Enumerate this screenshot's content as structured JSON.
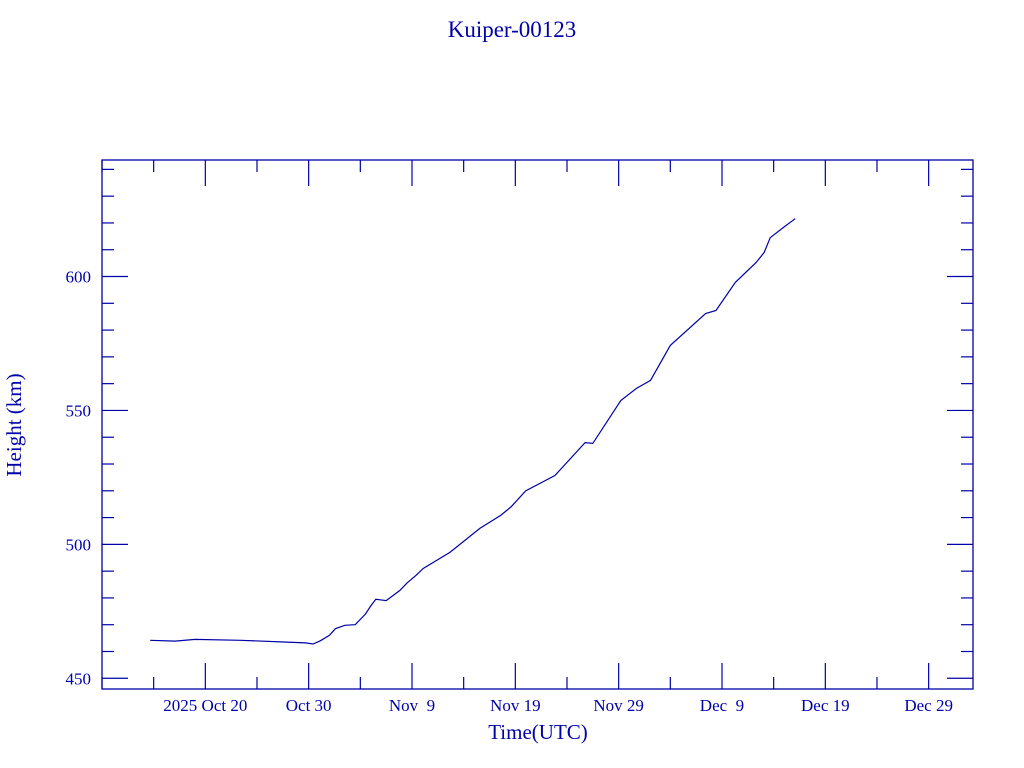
{
  "chart_data": {
    "type": "line",
    "title": "Kuiper-00123",
    "xlabel": "Time(UTC)",
    "ylabel": "Height (km)",
    "color": "#0000a8",
    "grid": false,
    "xlim": [
      "2025-10-10T00:00",
      "2026-01-02T07:00"
    ],
    "ylim": [
      446,
      643.5
    ],
    "x_major_ticks": [
      {
        "date": "2025-10-20",
        "label": "2025 Oct 20"
      },
      {
        "date": "2025-10-30",
        "label": "Oct 30"
      },
      {
        "date": "2025-11-09",
        "label": "Nov  9"
      },
      {
        "date": "2025-11-19",
        "label": "Nov 19"
      },
      {
        "date": "2025-11-29",
        "label": "Nov 29"
      },
      {
        "date": "2025-12-09",
        "label": "Dec  9"
      },
      {
        "date": "2025-12-19",
        "label": "Dec 19"
      },
      {
        "date": "2025-12-29",
        "label": "Dec 29"
      }
    ],
    "x_minor_tick_days": 5,
    "y_major_ticks": [
      450,
      500,
      550,
      600
    ],
    "y_minor_tick_step": 10,
    "series": [
      {
        "x": [
          "2025-10-14T16:00",
          "2025-10-17T02:00",
          "2025-10-19T00:00",
          "2025-10-23T10:00",
          "2025-10-27T07:00",
          "2025-10-29T17:00",
          "2025-10-30T10:00",
          "2025-10-31T03:00",
          "2025-11-01T00:00",
          "2025-11-01T14:00",
          "2025-11-02T12:00",
          "2025-11-03T12:00",
          "2025-11-04T12:00",
          "2025-11-05T00:00",
          "2025-11-05T12:00",
          "2025-11-06T12:00",
          "2025-11-07T20:00",
          "2025-11-08T12:00",
          "2025-11-09T09:00",
          "2025-11-10T02:00",
          "2025-11-12T16:00",
          "2025-11-15T14:00",
          "2025-11-17T14:00",
          "2025-11-18T14:00",
          "2025-11-20T00:00",
          "2025-11-22T20:00",
          "2025-11-25T18:00",
          "2025-11-26T12:00",
          "2025-11-29T05:00",
          "2025-11-30T17:00",
          "2025-12-02T02:00",
          "2025-12-04T00:00",
          "2025-12-07T10:00",
          "2025-12-08T10:00",
          "2025-12-10T07:00",
          "2025-12-12T07:00",
          "2025-12-13T02:00",
          "2025-12-13T16:00",
          "2025-12-15T00:00",
          "2025-12-16T02:00"
        ],
        "y": [
          464.2,
          463.9,
          464.5,
          464.2,
          463.6,
          463.2,
          462.8,
          464.0,
          466.0,
          468.5,
          469.8,
          470.0,
          474.0,
          477.0,
          479.5,
          479.0,
          482.8,
          485.5,
          488.4,
          491.0,
          497.0,
          506.0,
          510.8,
          514.0,
          520.0,
          525.7,
          538.0,
          537.7,
          553.7,
          558.2,
          561.2,
          574.3,
          586.2,
          587.3,
          597.8,
          605.2,
          609.0,
          614.5,
          618.5,
          621.6
        ]
      }
    ]
  }
}
